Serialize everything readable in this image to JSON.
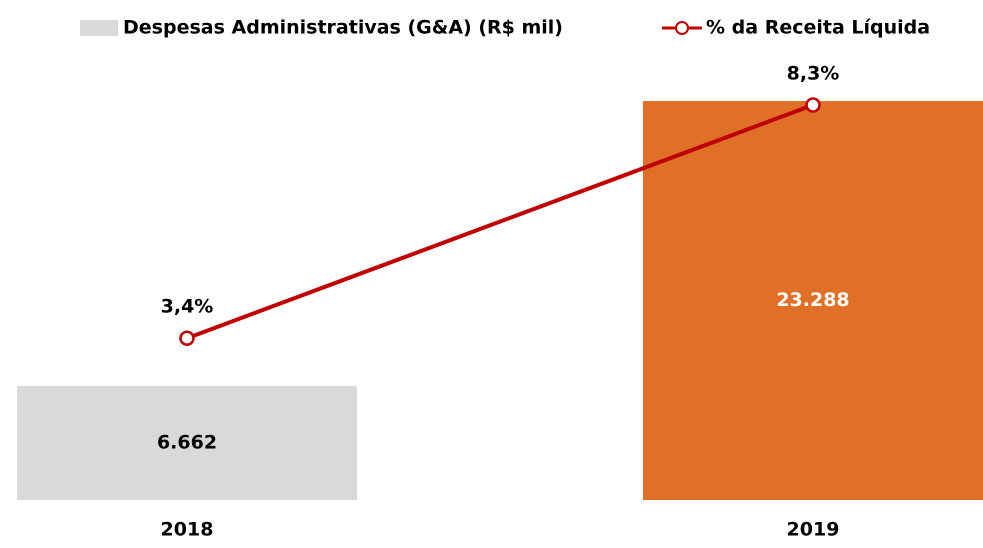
{
  "chart_data": {
    "type": "bar_line",
    "categories": [
      "2018",
      "2019"
    ],
    "series": [
      {
        "name": "Despesas Administrativas (G&A) (R$ mil)",
        "type": "bar",
        "axis": "y",
        "colors": [
          "#d9d9d9",
          "#e07028"
        ],
        "color": "#d9d9d9",
        "values": [
          6662,
          23288
        ],
        "value_labels": [
          "6.662",
          "23.288"
        ],
        "label_colors": [
          "#000000",
          "#ffffff"
        ]
      },
      {
        "name": "% da Receita Líquida",
        "type": "line",
        "axis": "y2",
        "color": "#c00000",
        "values": [
          3.4,
          8.3
        ],
        "value_labels": [
          "3,4%",
          "8,3%"
        ]
      }
    ],
    "ylim": [
      0,
      25000
    ],
    "y2lim": [
      0,
      9
    ]
  }
}
